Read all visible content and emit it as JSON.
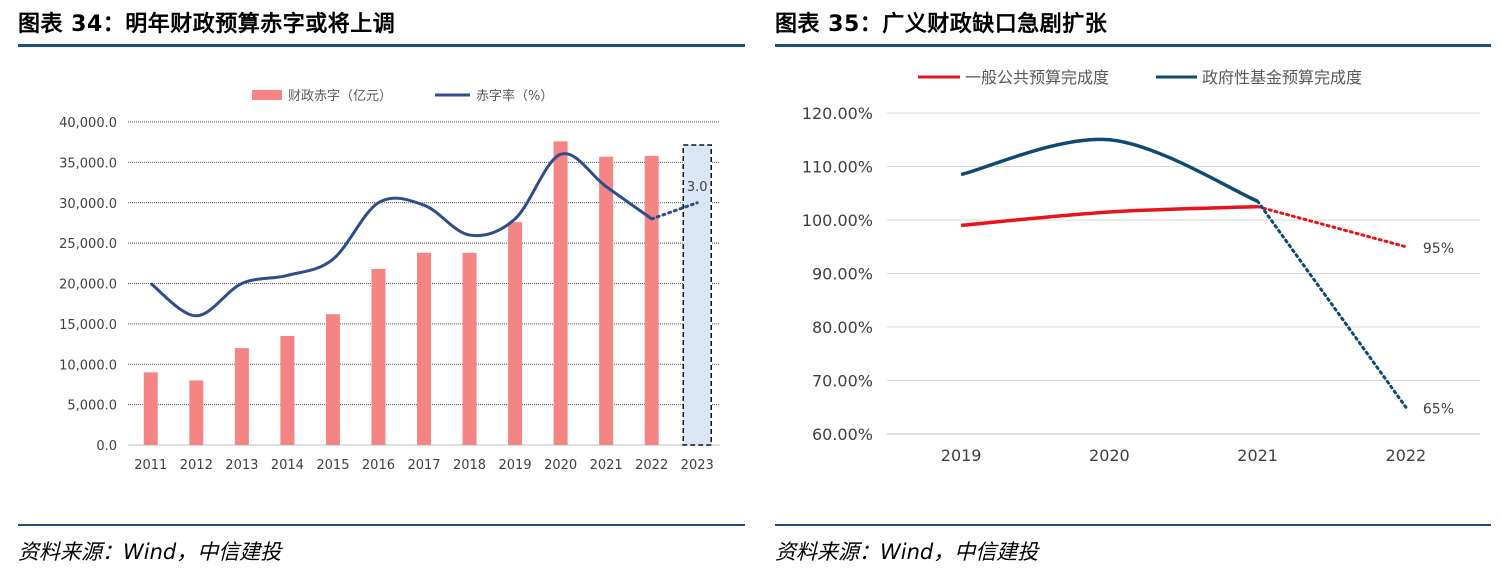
{
  "left": {
    "title": "图表 34：明年财政预算赤字或将上调",
    "source": "资料来源：Wind，中信建投"
  },
  "right": {
    "title": "图表 35：广义财政缺口急剧扩张",
    "source": "资料来源：Wind，中信建投"
  },
  "colors": {
    "rule": "#1f4e79",
    "bar": "#f58585",
    "line_blue": "#2e4d8a",
    "line_red": "#e8141b",
    "line_navy": "#0e4a72"
  },
  "chart_data": [
    {
      "type": "bar",
      "categories": [
        "2011",
        "2012",
        "2013",
        "2014",
        "2015",
        "2016",
        "2017",
        "2018",
        "2019",
        "2020",
        "2021",
        "2022",
        "2023"
      ],
      "series": [
        {
          "name": "财政赤字（亿元）",
          "type": "bar",
          "axis": "left",
          "values": [
            9000,
            8000,
            12000,
            13500,
            16200,
            21800,
            23800,
            23800,
            27600,
            37600,
            35700,
            35800,
            null
          ]
        },
        {
          "name": "赤字率（%）",
          "type": "line",
          "axis": "right",
          "values": [
            2.0,
            1.6,
            2.0,
            2.1,
            2.3,
            3.0,
            2.97,
            2.6,
            2.8,
            3.6,
            3.2,
            2.8,
            3.0
          ],
          "projected_from_index": 11
        }
      ],
      "yticks": [
        "0.0",
        "5,000.0",
        "10,000.0",
        "15,000.0",
        "20,000.0",
        "25,000.0",
        "30,000.0",
        "35,000.0",
        "40,000.0"
      ],
      "ylim": [
        0,
        40000
      ],
      "y2lim": [
        0,
        4
      ],
      "annotations": [
        {
          "text": "3.0",
          "category": "2023"
        }
      ],
      "highlight_category": "2023",
      "legend": "top",
      "grid": "horizontal"
    },
    {
      "type": "line",
      "categories": [
        "2019",
        "2020",
        "2021",
        "2022"
      ],
      "series": [
        {
          "name": "一般公共预算完成度",
          "values": [
            99.0,
            101.5,
            102.5,
            95.0
          ],
          "projected_from_index": 2
        },
        {
          "name": "政府性基金预算完成度",
          "values": [
            108.5,
            115.0,
            103.5,
            65.0
          ],
          "projected_from_index": 2
        }
      ],
      "yticks": [
        "60.00%",
        "70.00%",
        "80.00%",
        "90.00%",
        "100.00%",
        "110.00%",
        "120.00%"
      ],
      "ylim": [
        60,
        120
      ],
      "annotations": [
        {
          "text": "95%",
          "series": 0,
          "category": "2022"
        },
        {
          "text": "65%",
          "series": 1,
          "category": "2022"
        }
      ],
      "legend": "top",
      "grid": "horizontal"
    }
  ]
}
